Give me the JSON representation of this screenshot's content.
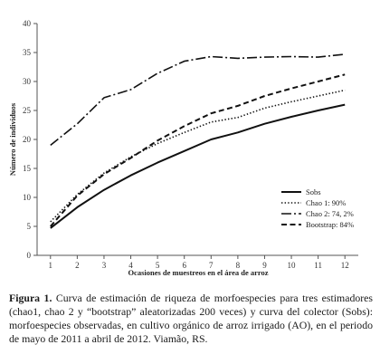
{
  "chart_data": {
    "type": "line",
    "xlabel": "Ocasiones de muestreos en el área de arroz",
    "ylabel": "Número de individuos",
    "x": [
      1,
      2,
      3,
      4,
      5,
      6,
      7,
      8,
      9,
      10,
      11,
      12
    ],
    "xlim": [
      0.5,
      12.5
    ],
    "ylim": [
      0,
      40
    ],
    "yticks": [
      0,
      5,
      10,
      15,
      20,
      25,
      30,
      35,
      40
    ],
    "grid": false,
    "legend_position": "bottom-right",
    "series": [
      {
        "name": "Sobs",
        "style": "solid",
        "color": "#111111",
        "values": [
          4.7,
          8.3,
          11.3,
          13.8,
          16.0,
          18.0,
          20.0,
          21.2,
          22.7,
          23.9,
          25.0,
          26.0
        ]
      },
      {
        "name": "Chao 1: 90%",
        "style": "dotted",
        "color": "#111111",
        "values": [
          5.8,
          10.5,
          14.2,
          17.0,
          19.3,
          21.2,
          23.0,
          23.8,
          25.4,
          26.5,
          27.5,
          28.5
        ]
      },
      {
        "name": "Chao 2: 74, 2%",
        "style": "longdash",
        "color": "#111111",
        "values": [
          19.0,
          22.7,
          27.2,
          28.6,
          31.4,
          33.5,
          34.3,
          34.0,
          34.2,
          34.3,
          34.2,
          34.7
        ]
      },
      {
        "name": "Bootstrap: 84%",
        "style": "dashed",
        "color": "#111111",
        "values": [
          5.0,
          10.3,
          14.0,
          16.8,
          19.8,
          22.3,
          24.5,
          25.8,
          27.5,
          28.8,
          30.0,
          31.2
        ]
      }
    ]
  },
  "caption": {
    "label": "Figura 1.",
    "text": " Curva de estimación de riqueza de morfoespecies para tres estimadores (chao1, chao 2 y “bootstrap” aleatorizadas 200 veces) y curva del colector (Sobs): morfoespecies observadas, en cultivo orgánico de arroz irrigado (AO), en el periodo de mayo de 2011 a abril de 2012. Viamão, RS."
  }
}
